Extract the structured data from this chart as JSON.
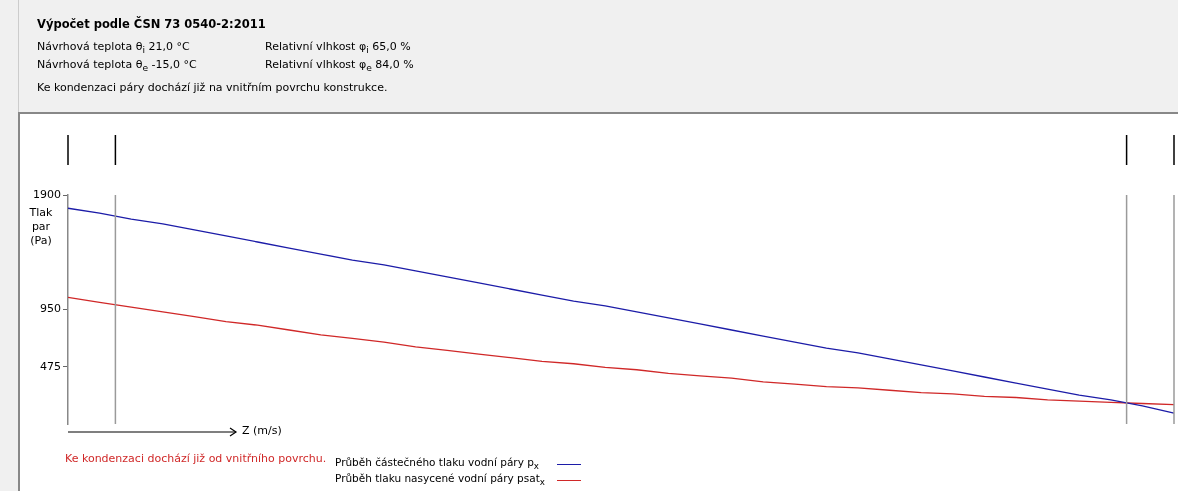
{
  "chart_data": {
    "type": "line",
    "title": "Výpočet podle ČSN 73 0540-2:2011",
    "annotations": [
      "Návrhová teplota θ$_{i}$ 21,0 °C",
      "Relativní vlhkost φ$_{i}$ 65,0 %",
      "Návrhová teplota θ$_{e}$ -15,0 °C",
      "Relativní vlhkost φ$_{e}$ 84,0 %",
      "Ke kondenzaci páry dochází již na vnitřním povrchu konstrukce.",
      "Ke kondenzaci dochází již od vnitřního povrchu."
    ],
    "xlabel": "Z (m/s)",
    "ylabel": "Tlak par (Pa)",
    "categories": [
      null,
      null,
      null,
      null,
      null,
      null,
      null,
      null,
      null,
      null,
      null,
      null,
      null,
      null,
      null,
      null,
      null,
      null,
      null,
      null,
      null,
      null,
      null,
      null,
      null,
      null,
      null,
      null,
      null,
      null,
      null,
      null,
      null,
      null,
      null,
      null
    ],
    "series": [
      {
        "name": "Průběh částečného tlaku vodní páry p$_{x}$",
        "color": "#1c1ca8",
        "values": [
          1790,
          1750,
          1700,
          1660,
          1610,
          1560,
          1510,
          1460,
          1410,
          1360,
          1320,
          1270,
          1220,
          1170,
          1120,
          1070,
          1020,
          980,
          930,
          880,
          830,
          780,
          730,
          680,
          630,
          590,
          540,
          490,
          440,
          390,
          340,
          290,
          240,
          200,
          150,
          90
        ]
      },
      {
        "name": "Průběh tlaku nasycené vodní páry psat$_{x}$",
        "color": "#d02828",
        "values": [
          1050,
          1010,
          970,
          930,
          890,
          850,
          820,
          780,
          740,
          710,
          680,
          640,
          610,
          580,
          550,
          520,
          500,
          470,
          450,
          420,
          400,
          380,
          350,
          330,
          310,
          300,
          280,
          260,
          250,
          230,
          220,
          200,
          190,
          180,
          170,
          160
        ]
      }
    ],
    "ylim": [
      0,
      1900
    ],
    "yticks": [
      475,
      950,
      1900
    ],
    "tick_labels": "y",
    "grid": false,
    "legend": "bottom",
    "marker": "none",
    "line_style": "solid"
  }
}
